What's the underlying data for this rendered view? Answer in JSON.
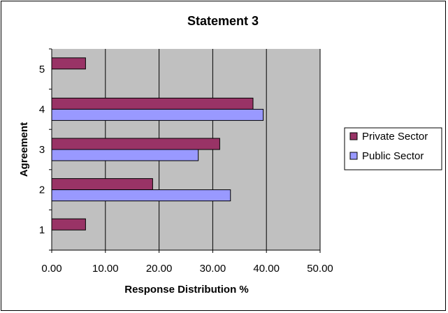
{
  "chart_data": {
    "type": "bar",
    "orientation": "horizontal",
    "title": "Statement 3",
    "xlabel": "Response Distribution %",
    "ylabel": "Agreement",
    "categories": [
      "1",
      "2",
      "3",
      "4",
      "5"
    ],
    "xlim": [
      0,
      50
    ],
    "x_ticks": [
      "0.00",
      "10.00",
      "20.00",
      "30.00",
      "40.00",
      "50.00"
    ],
    "grid": "vertical",
    "legend_position": "right",
    "series": [
      {
        "name": "Private Sector",
        "color": "#993366",
        "values": [
          6.3,
          18.8,
          31.3,
          37.5,
          6.3
        ]
      },
      {
        "name": "Public Sector",
        "color": "#9999FF",
        "values": [
          0,
          33.3,
          27.3,
          39.4,
          0
        ]
      }
    ],
    "plot_background": "#C0C0C0"
  }
}
